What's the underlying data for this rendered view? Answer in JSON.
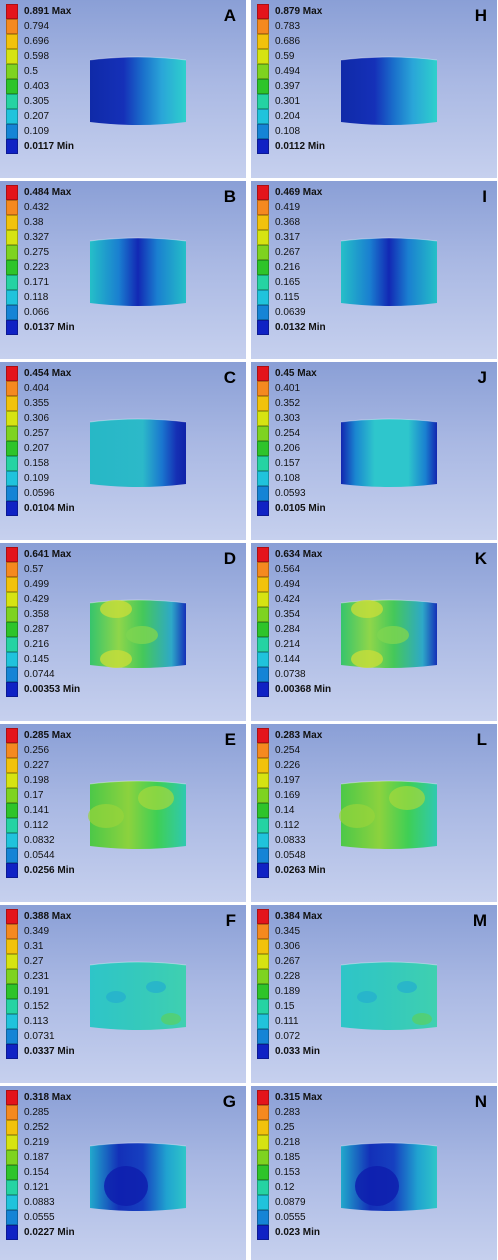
{
  "panels": [
    {
      "letter": "A",
      "legend": [
        "0.891 Max",
        "0.794",
        "0.696",
        "0.598",
        "0.5",
        "0.403",
        "0.305",
        "0.207",
        "0.109",
        "0.0117 Min"
      ],
      "pattern": "dark-left"
    },
    {
      "letter": "H",
      "legend": [
        "0.879 Max",
        "0.783",
        "0.686",
        "0.59",
        "0.494",
        "0.397",
        "0.301",
        "0.204",
        "0.108",
        "0.0112 Min"
      ],
      "pattern": "dark-left"
    },
    {
      "letter": "B",
      "legend": [
        "0.484 Max",
        "0.432",
        "0.38",
        "0.327",
        "0.275",
        "0.223",
        "0.171",
        "0.118",
        "0.066",
        "0.0137 Min"
      ],
      "pattern": "dark-center"
    },
    {
      "letter": "I",
      "legend": [
        "0.469 Max",
        "0.419",
        "0.368",
        "0.317",
        "0.267",
        "0.216",
        "0.165",
        "0.115",
        "0.0639",
        "0.0132 Min"
      ],
      "pattern": "dark-center"
    },
    {
      "letter": "C",
      "legend": [
        "0.454 Max",
        "0.404",
        "0.355",
        "0.306",
        "0.257",
        "0.207",
        "0.158",
        "0.109",
        "0.0596",
        "0.0104 Min"
      ],
      "pattern": "dark-right"
    },
    {
      "letter": "J",
      "legend": [
        "0.45 Max",
        "0.401",
        "0.352",
        "0.303",
        "0.254",
        "0.206",
        "0.157",
        "0.108",
        "0.0593",
        "0.0105 Min"
      ],
      "pattern": "dark-edges"
    },
    {
      "letter": "D",
      "legend": [
        "0.641 Max",
        "0.57",
        "0.499",
        "0.429",
        "0.358",
        "0.287",
        "0.216",
        "0.145",
        "0.0744",
        "0.00353 Min"
      ],
      "pattern": "green-right"
    },
    {
      "letter": "K",
      "legend": [
        "0.634 Max",
        "0.564",
        "0.494",
        "0.424",
        "0.354",
        "0.284",
        "0.214",
        "0.144",
        "0.0738",
        "0.00368 Min"
      ],
      "pattern": "green-right"
    },
    {
      "letter": "E",
      "legend": [
        "0.285 Max",
        "0.256",
        "0.227",
        "0.198",
        "0.17",
        "0.141",
        "0.112",
        "0.0832",
        "0.0544",
        "0.0256 Min"
      ],
      "pattern": "green"
    },
    {
      "letter": "L",
      "legend": [
        "0.283 Max",
        "0.254",
        "0.226",
        "0.197",
        "0.169",
        "0.14",
        "0.112",
        "0.0833",
        "0.0548",
        "0.0263 Min"
      ],
      "pattern": "green"
    },
    {
      "letter": "F",
      "legend": [
        "0.388 Max",
        "0.349",
        "0.31",
        "0.27",
        "0.231",
        "0.191",
        "0.152",
        "0.113",
        "0.0731",
        "0.0337 Min"
      ],
      "pattern": "cyan"
    },
    {
      "letter": "M",
      "legend": [
        "0.384 Max",
        "0.345",
        "0.306",
        "0.267",
        "0.228",
        "0.189",
        "0.15",
        "0.111",
        "0.072",
        "0.033 Min"
      ],
      "pattern": "cyan"
    },
    {
      "letter": "G",
      "legend": [
        "0.318 Max",
        "0.285",
        "0.252",
        "0.219",
        "0.187",
        "0.154",
        "0.121",
        "0.0883",
        "0.0555",
        "0.0227 Min"
      ],
      "pattern": "blue-blob"
    },
    {
      "letter": "N",
      "legend": [
        "0.315 Max",
        "0.283",
        "0.25",
        "0.218",
        "0.185",
        "0.153",
        "0.12",
        "0.0879",
        "0.0555",
        "0.023 Min"
      ],
      "pattern": "blue-blob"
    }
  ],
  "legend_colors": [
    "#e4141b",
    "#f5891f",
    "#f2c20c",
    "#d6e312",
    "#7ed320",
    "#2ec42a",
    "#25d3a3",
    "#20c3dc",
    "#1584d6",
    "#1022c4"
  ]
}
